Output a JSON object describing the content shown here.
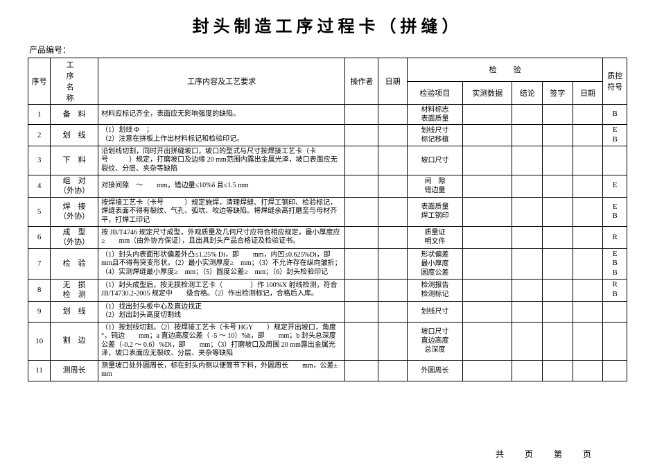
{
  "title": "封头制造工序过程卡（拼缝）",
  "product_no_label": "产品编号：",
  "headers": {
    "seq": "序号",
    "proc_name": "工　序\n名　称",
    "content": "工序内容及工艺要求",
    "operator": "操作者",
    "date": "日期",
    "inspection": "检验",
    "insp_item": "检验项目",
    "measured": "实测数据",
    "conclusion": "结论",
    "sign": "签字",
    "date2": "日期",
    "qc": "质控符号"
  },
  "rows": [
    {
      "seq": "1",
      "name": "备　料",
      "content": "材料应标记齐全，表面应无影响强度的缺陷。",
      "insp": "材料标志\n表面质量",
      "qc": "B"
    },
    {
      "seq": "2",
      "name": "划　线",
      "content": "（1）划线 Φ　；\n（2）注意在拼板上作出材料标记和检验印记。",
      "insp": "划线尺寸\n标记移植",
      "qc": "E\nB"
    },
    {
      "seq": "3",
      "name": "下　料",
      "content": "沿划线切割，同时开出拼缝坡口，坡口的型式与尺寸按焊接工艺卡（卡号　　　）规定，打磨坡口及边缘 20 mm范围内露出金属光泽，坡口表面应无裂纹、分层、夹杂等缺陷",
      "insp": "坡口尺寸",
      "qc": ""
    },
    {
      "seq": "4",
      "name": "组　对\n（外协）",
      "content": "对接间隙　～　　mm，错边量≤10%δ 且≤1.5 mm",
      "insp": "间　隙\n错边量",
      "qc": "E"
    },
    {
      "seq": "5",
      "name": "焊　接\n（外协）",
      "content": "按焊接工艺卡（卡号　　　）规定施焊，清理焊缝、打焊工钢印、检验标记，焊缝表面不得有裂纹、气孔、弧坑、咬边等缺陷。将焊缝余高打磨至与母材齐平，打焊工印记",
      "insp": "表面质量\n焊工钢印",
      "qc": "E\nB"
    },
    {
      "seq": "6",
      "name": "成　型\n（外协）",
      "content": "按 JB/T4746 规定尺寸成型，外观质量及几何尺寸应符合相应规定，最小厚度应≥　　mm（由外协方保证），且出具封头产品合格证及检验证书。",
      "insp": "质量证\n明文件",
      "qc": "R"
    },
    {
      "seq": "7",
      "name": "检　验",
      "content": "（1）封头内表面形状偏差外凸≤1.25% Di，即　　mm，内凹≤0.625%Di，即　　mm且不得有突变形状。（2）最小实测厚度≥　mm；（3）不允许存在纵向皱折；（4）实测焊缝最小厚度≥　mm；（5）圆度公差≥　mm；（6）封头检验印记",
      "insp": "形状偏差\n最小厚度\n圆度公差",
      "qc": "E\nB\nB"
    },
    {
      "seq": "8",
      "name": "无　损\n检　测",
      "content": "（1）封头成型后，按无损检测工艺卡（　　　　）作 100%X 射线检测，符合 JB/T4730.2-2005 规定中　　级合格。（2）作出检测标记，合格后入库。",
      "insp": "检测报告\n检测标记",
      "qc": "R\nB"
    },
    {
      "seq": "9",
      "name": "划　线",
      "content": "（1）找出封头板中心及直边找正\n（2）划出封头高度切割线",
      "insp": "划线尺寸",
      "qc": ""
    },
    {
      "seq": "10",
      "name": "割　边",
      "content": "（1）按划线切割。（2）按焊接工艺卡（卡号 HGY　　）规定开出坡口，角度　　°，钝边　　mm；a 直边高度公差（ -5 ～ 10）%h，即　　mm；b 封头总深度公差（-0.2 ～ 0.6）%Di，即　　mm；（3）打磨坡口及周围 20 mm露出金属光泽，坡口表面应无裂纹、分层、夹杂等缺陷",
      "insp": "坡口尺寸\n直边高度\n总深度",
      "qc": ""
    },
    {
      "seq": "11",
      "name": "测周长",
      "content": "测量坡口处外圆周长，标在封头内侧以便筒节下料，外圆周长　　mm，公差±　　mm",
      "insp": "外圆周长",
      "qc": ""
    }
  ],
  "footer": "共　　页　　第　　页"
}
